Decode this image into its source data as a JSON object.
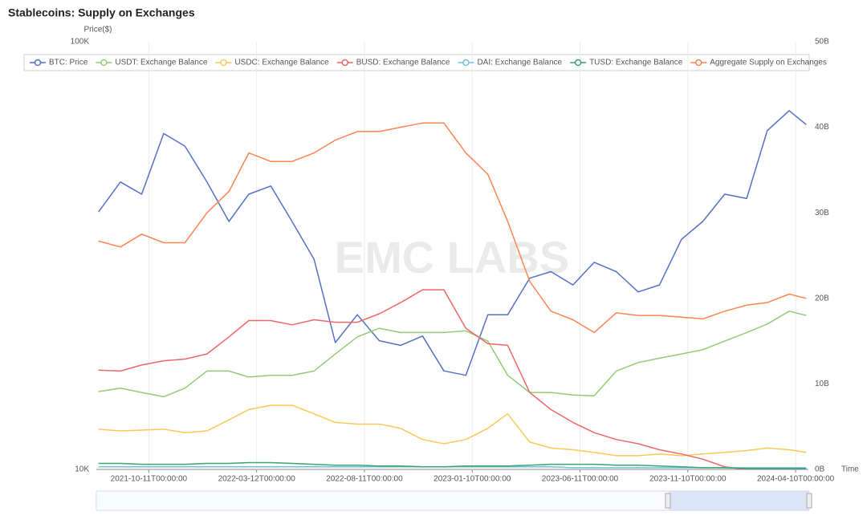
{
  "chart_data": {
    "type": "line",
    "title": "Stablecoins: Supply on Exchanges",
    "y_label": "Price($)",
    "x_label": "Time",
    "watermark": "EMC LABS",
    "y_scale": "log",
    "ylim": [
      10000,
      100000
    ],
    "yticks": [
      {
        "value": 10000,
        "label": "10K"
      },
      {
        "value": 100000,
        "label": "100K"
      }
    ],
    "y2lim": [
      0,
      50000000000
    ],
    "y2ticks": [
      {
        "value": 0,
        "label": "0B"
      },
      {
        "value": 10000000000,
        "label": "10B"
      },
      {
        "value": 20000000000,
        "label": "20B"
      },
      {
        "value": 30000000000,
        "label": "30B"
      },
      {
        "value": 40000000000,
        "label": "40B"
      },
      {
        "value": 50000000000,
        "label": "50B"
      }
    ],
    "xlim": [
      "2021-07-29T00:00:00",
      "2024-04-28T00:00:00"
    ],
    "xticks": [
      "2021-10-11T00:00:00",
      "2022-03-12T00:00:00",
      "2022-08-11T00:00:00",
      "2023-01-10T00:00:00",
      "2023-06-11T00:00:00",
      "2023-11-10T00:00:00",
      "2024-04-10T00:00:00"
    ],
    "grid": true,
    "legend": "top",
    "x": [
      "2021-08-01T00:00:00",
      "2021-09-01T00:00:00",
      "2021-10-01T00:00:00",
      "2021-11-01T00:00:00",
      "2021-12-01T00:00:00",
      "2022-01-01T00:00:00",
      "2022-02-01T00:00:00",
      "2022-03-01T00:00:00",
      "2022-04-01T00:00:00",
      "2022-05-01T00:00:00",
      "2022-06-01T00:00:00",
      "2022-07-01T00:00:00",
      "2022-08-01T00:00:00",
      "2022-09-01T00:00:00",
      "2022-10-01T00:00:00",
      "2022-11-01T00:00:00",
      "2022-12-01T00:00:00",
      "2023-01-01T00:00:00",
      "2023-02-01T00:00:00",
      "2023-03-01T00:00:00",
      "2023-04-01T00:00:00",
      "2023-05-01T00:00:00",
      "2023-06-01T00:00:00",
      "2023-07-01T00:00:00",
      "2023-08-01T00:00:00",
      "2023-09-01T00:00:00",
      "2023-10-01T00:00:00",
      "2023-11-01T00:00:00",
      "2023-12-01T00:00:00",
      "2024-01-01T00:00:00",
      "2024-02-01T00:00:00",
      "2024-03-01T00:00:00",
      "2024-04-01T00:00:00",
      "2024-04-25T00:00:00"
    ],
    "series": [
      {
        "name": "BTC: Price",
        "color": "#5470c6",
        "axis": "y",
        "values": [
          40000,
          47000,
          44000,
          61000,
          57000,
          47000,
          38000,
          44000,
          46000,
          38000,
          31000,
          19800,
          23000,
          20000,
          19500,
          20500,
          17000,
          16600,
          23000,
          23000,
          28000,
          29000,
          27000,
          30500,
          29000,
          26000,
          27000,
          34500,
          38000,
          44000,
          43000,
          62000,
          69000,
          64000
        ]
      },
      {
        "name": "USDT: Exchange Balance",
        "color": "#91cc75",
        "axis": "y2",
        "values": [
          9100000000.0,
          9500000000.0,
          9000000000.0,
          8500000000.0,
          9500000000.0,
          11500000000.0,
          11500000000.0,
          10800000000.0,
          11000000000.0,
          11000000000.0,
          11500000000.0,
          13500000000.0,
          15500000000.0,
          16500000000.0,
          16000000000.0,
          16000000000.0,
          16000000000.0,
          16200000000.0,
          15000000000.0,
          11000000000.0,
          9000000000.0,
          9000000000.0,
          8700000000.0,
          8600000000.0,
          11500000000.0,
          12500000000.0,
          13000000000.0,
          13500000000.0,
          14000000000.0,
          15000000000.0,
          16000000000.0,
          17000000000.0,
          18500000000.0,
          18000000000.0
        ]
      },
      {
        "name": "USDC: Exchange Balance",
        "color": "#fac858",
        "axis": "y2",
        "values": [
          4700000000.0,
          4500000000.0,
          4600000000.0,
          4700000000.0,
          4300000000.0,
          4500000000.0,
          5800000000.0,
          7000000000.0,
          7500000000.0,
          7500000000.0,
          6500000000.0,
          5500000000.0,
          5300000000.0,
          5300000000.0,
          4800000000.0,
          3500000000.0,
          3000000000.0,
          3500000000.0,
          4800000000.0,
          6500000000.0,
          3200000000.0,
          2500000000.0,
          2300000000.0,
          2000000000.0,
          1600000000.0,
          1600000000.0,
          1800000000.0,
          1600000000.0,
          1800000000.0,
          2000000000.0,
          2200000000.0,
          2500000000.0,
          2300000000.0,
          2000000000.0
        ]
      },
      {
        "name": "BUSD: Exchange Balance",
        "color": "#ee6666",
        "axis": "y2",
        "values": [
          11600000000.0,
          11500000000.0,
          12200000000.0,
          12700000000.0,
          12900000000.0,
          13500000000.0,
          15500000000.0,
          17400000000.0,
          17400000000.0,
          16900000000.0,
          17500000000.0,
          17200000000.0,
          17200000000.0,
          18200000000.0,
          19500000000.0,
          21000000000.0,
          21000000000.0,
          16500000000.0,
          14700000000.0,
          14500000000.0,
          9000000000.0,
          7000000000.0,
          5500000000.0,
          4300000000.0,
          3500000000.0,
          3000000000.0,
          2300000000.0,
          1800000000.0,
          1200000000.0,
          300000000.0,
          0,
          null,
          null,
          null
        ]
      },
      {
        "name": "DAI: Exchange Balance",
        "color": "#73c0de",
        "axis": "y2",
        "values": [
          300000000.0,
          300000000.0,
          300000000.0,
          300000000.0,
          300000000.0,
          300000000.0,
          300000000.0,
          300000000.0,
          300000000.0,
          300000000.0,
          300000000.0,
          300000000.0,
          300000000.0,
          300000000.0,
          300000000.0,
          300000000.0,
          300000000.0,
          300000000.0,
          300000000.0,
          300000000.0,
          300000000.0,
          300000000.0,
          200000000.0,
          200000000.0,
          200000000.0,
          200000000.0,
          200000000.0,
          200000000.0,
          200000000.0,
          200000000.0,
          200000000.0,
          200000000.0,
          200000000.0,
          200000000.0
        ]
      },
      {
        "name": "TUSD: Exchange Balance",
        "color": "#3ba272",
        "axis": "y2",
        "values": [
          700000000.0,
          700000000.0,
          600000000.0,
          600000000.0,
          600000000.0,
          700000000.0,
          700000000.0,
          800000000.0,
          800000000.0,
          700000000.0,
          600000000.0,
          500000000.0,
          500000000.0,
          400000000.0,
          400000000.0,
          300000000.0,
          300000000.0,
          400000000.0,
          400000000.0,
          400000000.0,
          500000000.0,
          600000000.0,
          600000000.0,
          600000000.0,
          500000000.0,
          500000000.0,
          400000000.0,
          300000000.0,
          200000000.0,
          200000000.0,
          100000000.0,
          100000000.0,
          100000000.0,
          100000000.0
        ]
      },
      {
        "name": "Aggregate Supply on Exchanges",
        "color": "#fc8452",
        "axis": "y2",
        "values": [
          26700000000.0,
          26000000000.0,
          27500000000.0,
          26500000000.0,
          26500000000.0,
          30000000000.0,
          32500000000.0,
          37000000000.0,
          36000000000.0,
          36000000000.0,
          37000000000.0,
          38500000000.0,
          39500000000.0,
          39500000000.0,
          40000000000.0,
          40500000000.0,
          40500000000.0,
          37000000000.0,
          34500000000.0,
          29000000000.0,
          22000000000.0,
          18500000000.0,
          17500000000.0,
          16000000000.0,
          18300000000.0,
          18000000000.0,
          18000000000.0,
          17800000000.0,
          17600000000.0,
          18500000000.0,
          19200000000.0,
          19500000000.0,
          20500000000.0,
          20000000000.0
        ]
      }
    ]
  }
}
